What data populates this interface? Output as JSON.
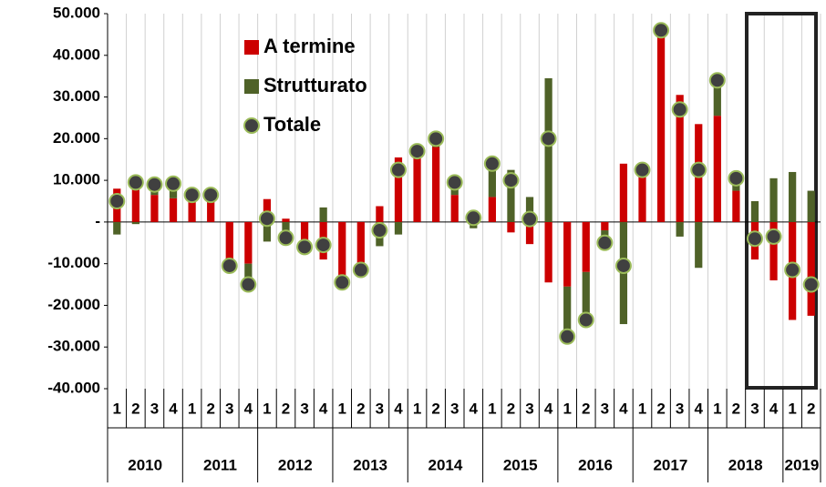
{
  "chart_data": {
    "type": "bar",
    "categories": [
      "1",
      "2",
      "3",
      "4",
      "1",
      "2",
      "3",
      "4",
      "1",
      "2",
      "3",
      "4",
      "1",
      "2",
      "3",
      "4",
      "1",
      "2",
      "3",
      "4",
      "1",
      "2",
      "3",
      "4",
      "1",
      "2",
      "3",
      "4",
      "1",
      "2",
      "3",
      "4",
      "1",
      "2",
      "3",
      "4",
      "1",
      "2"
    ],
    "years": [
      "2010",
      "2011",
      "2012",
      "2013",
      "2014",
      "2015",
      "2016",
      "2017",
      "2018",
      "2019"
    ],
    "series": [
      {
        "name": "A termine",
        "color": "#cc0000",
        "values": [
          8000,
          10000,
          6500,
          5700,
          5500,
          6500,
          -10500,
          -10000,
          5500,
          800,
          -6000,
          -9000,
          -14500,
          -10500,
          3800,
          15500,
          16500,
          18000,
          6500,
          2500,
          6000,
          -2500,
          -5300,
          -14500,
          -15500,
          -12000,
          -2000,
          14000,
          12500,
          46000,
          30500,
          23500,
          25500,
          7500,
          -9000,
          -14000,
          -23500,
          -22500
        ]
      },
      {
        "name": "Strutturato",
        "color": "#4f6228",
        "values": [
          -3000,
          -500,
          2500,
          3500,
          1000,
          0,
          0,
          -5000,
          -4700,
          -4600,
          0,
          3500,
          0,
          -1000,
          -5800,
          -3000,
          500,
          2000,
          3000,
          -1500,
          8000,
          12500,
          6000,
          34500,
          -12000,
          -11500,
          -3000,
          -24500,
          0,
          0,
          -3500,
          -11000,
          8500,
          3000,
          5000,
          10500,
          12000,
          7500
        ]
      },
      {
        "name": "Totale",
        "color": "#404040",
        "values": [
          5000,
          9500,
          9000,
          9200,
          6500,
          6500,
          -10500,
          -15000,
          800,
          -3800,
          -6000,
          -5500,
          -14500,
          -11500,
          -2000,
          12500,
          17000,
          20000,
          9500,
          1000,
          14000,
          10000,
          700,
          20000,
          -27500,
          -23500,
          -5000,
          -10500,
          12500,
          46000,
          27000,
          12500,
          34000,
          10500,
          -4000,
          -3500,
          -11500,
          -15000
        ]
      }
    ],
    "ylim": [
      -40000,
      50000
    ],
    "yticks": [
      {
        "value": -40000,
        "label": "-40.000"
      },
      {
        "value": -30000,
        "label": "-30.000"
      },
      {
        "value": -20000,
        "label": "-20.000"
      },
      {
        "value": -10000,
        "label": "-10.000"
      },
      {
        "value": 0,
        "label": "-"
      },
      {
        "value": 10000,
        "label": "10.000"
      },
      {
        "value": 20000,
        "label": "20.000"
      },
      {
        "value": 30000,
        "label": "30.000"
      },
      {
        "value": 40000,
        "label": "40.000"
      },
      {
        "value": 50000,
        "label": "50.000"
      }
    ],
    "grid": true
  }
}
